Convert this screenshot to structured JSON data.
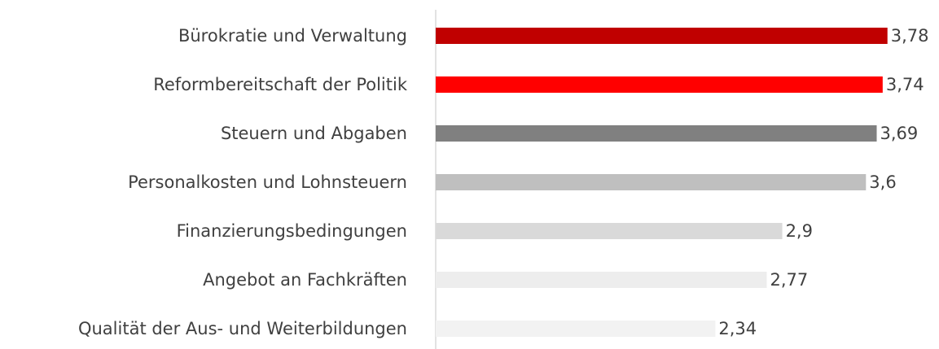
{
  "chart_data": {
    "type": "barh",
    "categories": [
      "Bürokratie und Verwaltung",
      "Reformbereitschaft der Politik",
      "Steuern und Abgaben",
      "Personalkosten und Lohnsteuern",
      "Finanzierungsbedingungen",
      "Angebot an Fachkräften",
      "Qualität der Aus- und Weiterbildungen"
    ],
    "values": [
      3.78,
      3.74,
      3.69,
      3.6,
      2.9,
      2.77,
      2.34
    ],
    "value_labels": [
      "3,78",
      "3,74",
      "3,69",
      "3,6",
      "2,9",
      "2,77",
      "2,34"
    ],
    "colors": [
      "#c00000",
      "#ff0000",
      "#808080",
      "#bfbfbf",
      "#d9d9d9",
      "#ededed",
      "#f2f2f2"
    ],
    "xlim": [
      0,
      4
    ]
  }
}
